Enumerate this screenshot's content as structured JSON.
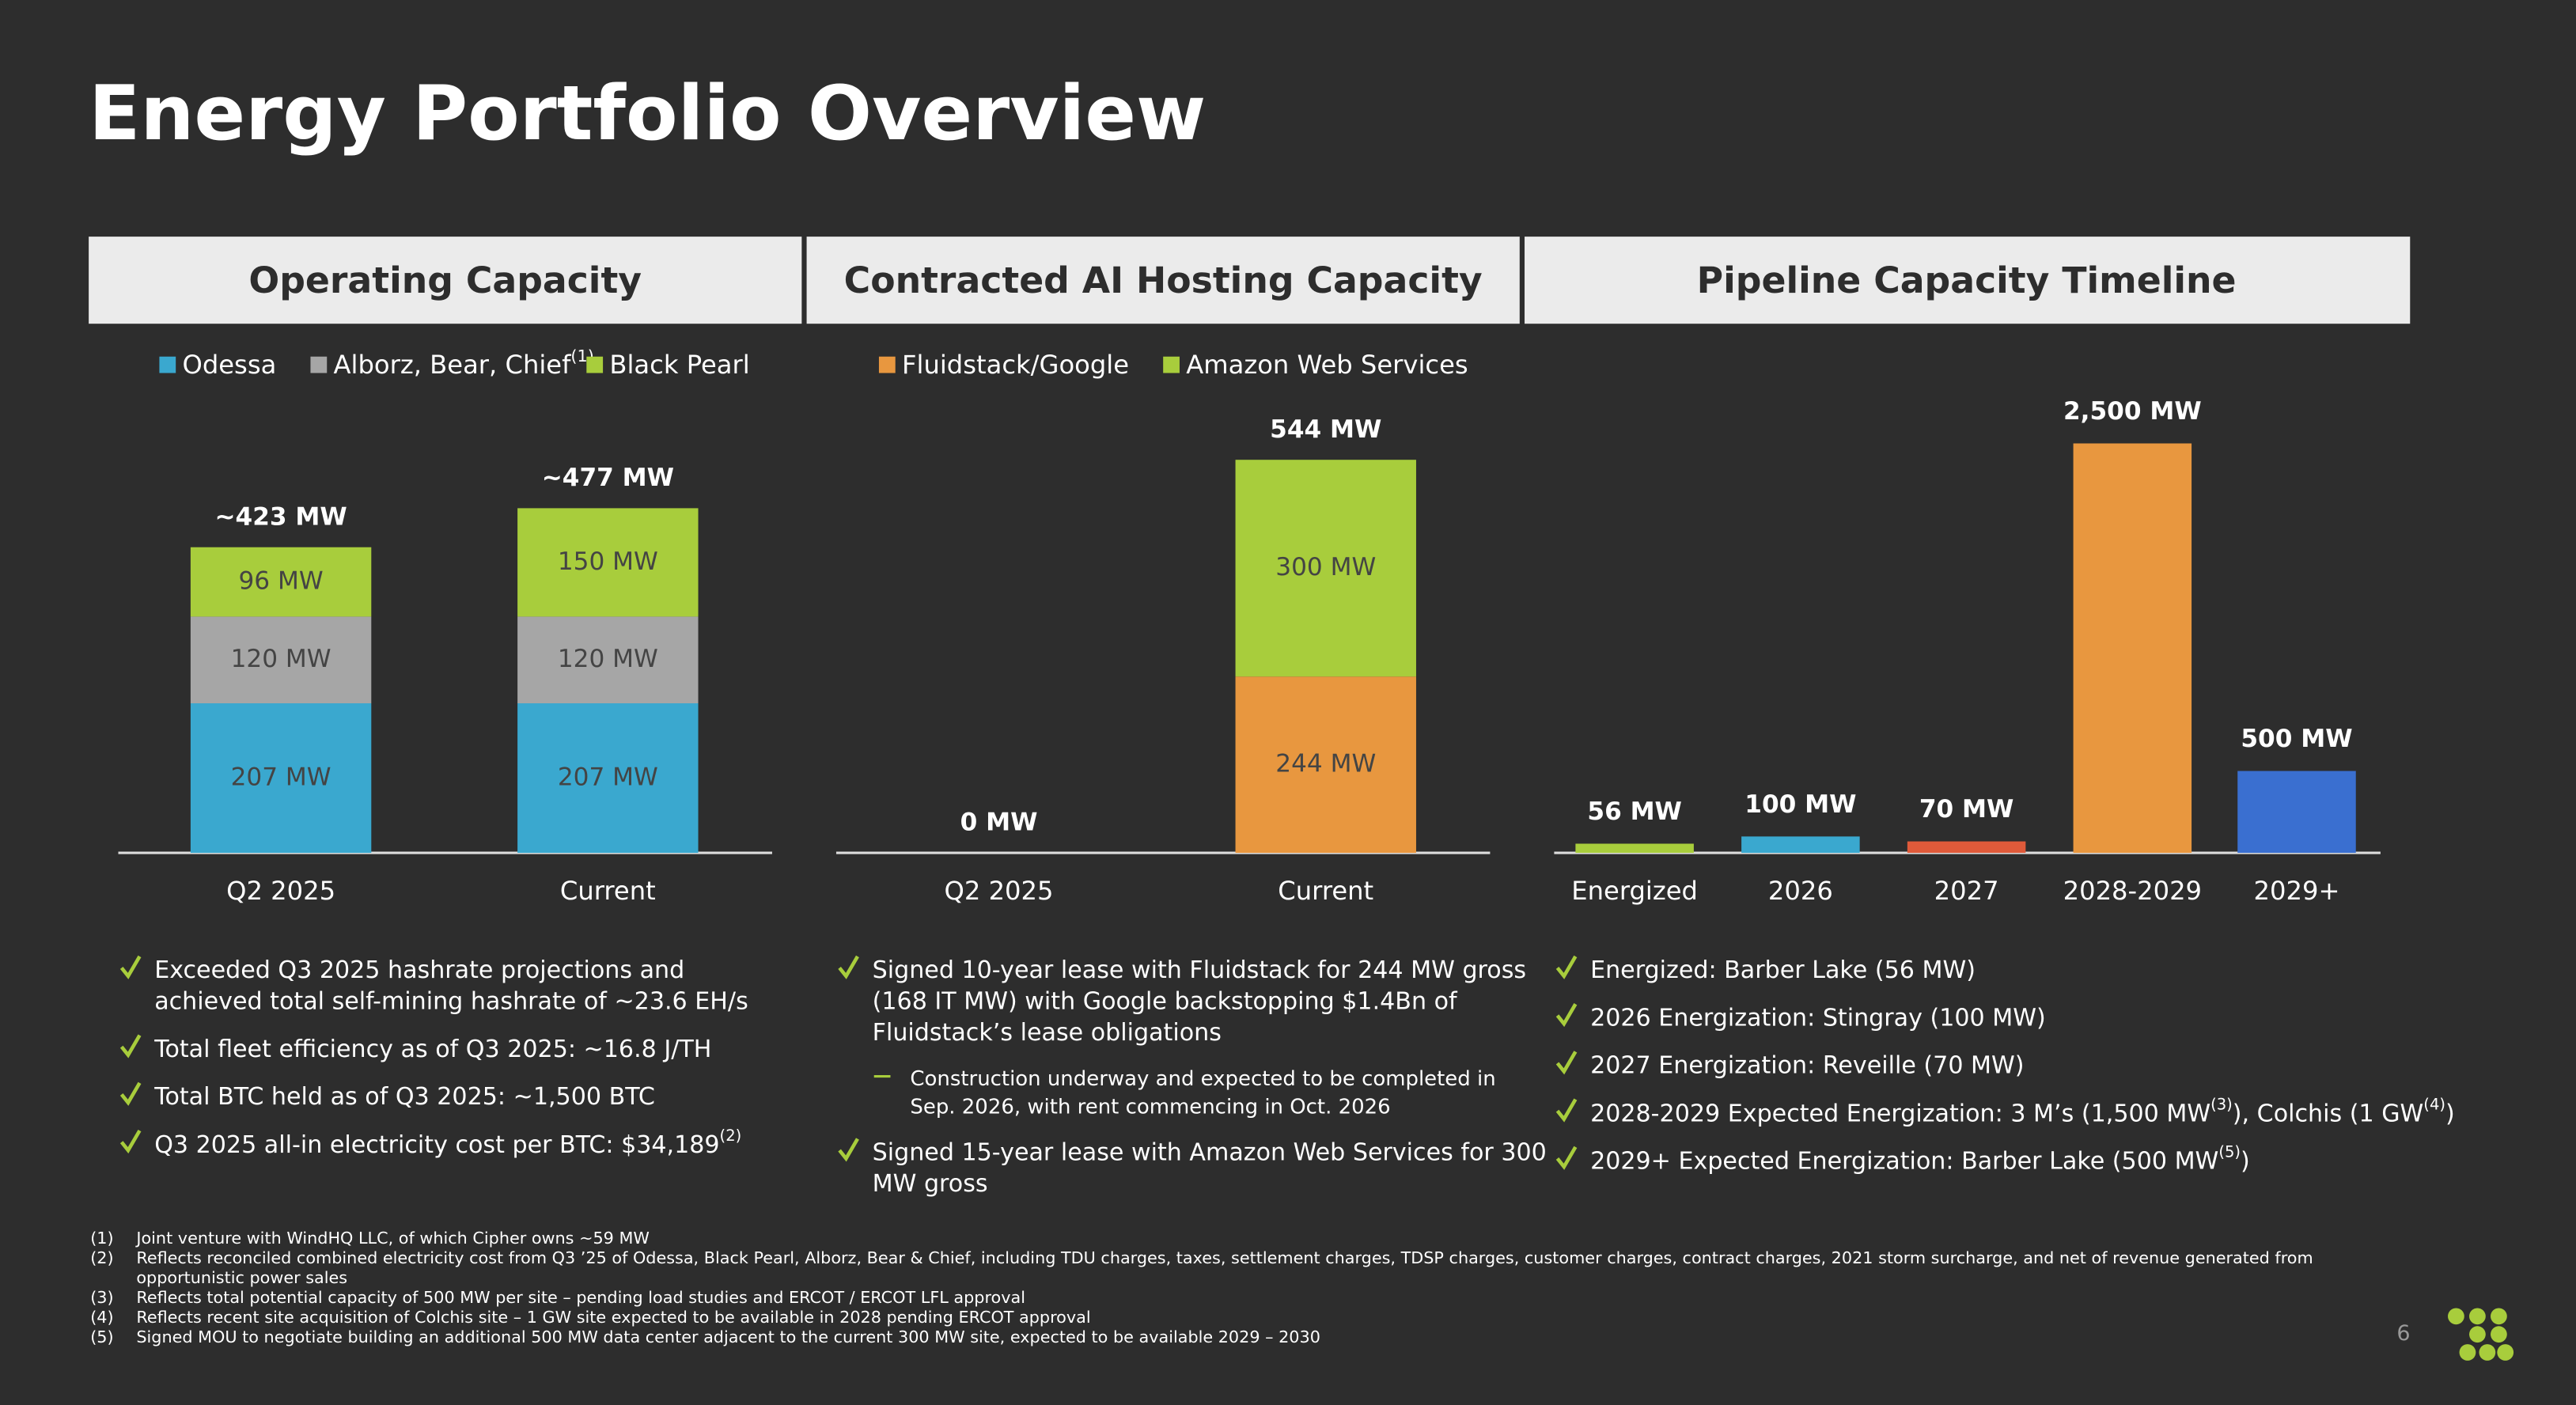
{
  "title": "Energy Portfolio Overview",
  "chart_data": [
    {
      "type": "stacked_bar",
      "title": "Operating Capacity",
      "categories": [
        "Q2 2025",
        "Current"
      ],
      "series": [
        {
          "name": "Odessa",
          "color": "#3aa8cf",
          "values": [
            207,
            207
          ],
          "value_labels": [
            "207 MW",
            "207 MW"
          ]
        },
        {
          "name": "Alborz, Bear, Chief",
          "name_sup": "(1)",
          "color": "#a6a6a6",
          "values": [
            120,
            120
          ],
          "value_labels": [
            "120 MW",
            "120 MW"
          ]
        },
        {
          "name": "Black Pearl",
          "color": "#a8cd3c",
          "values": [
            96,
            150
          ],
          "value_labels": [
            "96 MW",
            "150 MW"
          ]
        }
      ],
      "totals": [
        423,
        477
      ],
      "total_labels": [
        "~423 MW",
        "~477 MW"
      ],
      "ylim": [
        0,
        680
      ],
      "notes": [
        {
          "lines": [
            "Exceeded Q3 2025 hashrate projections and",
            "achieved total self-mining hashrate of ~23.6 EH/s"
          ]
        },
        {
          "lines": [
            "Total fleet efficiency as of Q3 2025: ~16.8 J/TH"
          ]
        },
        {
          "lines": [
            "Total BTC held as of Q3 2025: ~1,500 BTC"
          ]
        },
        {
          "lines": [
            [
              "Q3 2025 all-in electricity cost per BTC: $34,189",
              {
                "sup": "(2)"
              }
            ]
          ]
        }
      ]
    },
    {
      "type": "stacked_bar",
      "title": "Contracted AI Hosting Capacity",
      "categories": [
        "Q2 2025",
        "Current"
      ],
      "series": [
        {
          "name": "Fluidstack/Google",
          "color": "#e8973f",
          "values": [
            0,
            244
          ],
          "value_labels": [
            null,
            "244 MW"
          ]
        },
        {
          "name": "Amazon Web Services",
          "color": "#a8cd3c",
          "values": [
            0,
            300
          ],
          "value_labels": [
            null,
            "300 MW"
          ]
        }
      ],
      "totals": [
        0,
        544
      ],
      "total_labels": [
        "0 MW",
        "544 MW"
      ],
      "ylim": [
        0,
        680
      ],
      "notes": [
        {
          "lines": [
            "Signed 10-year lease with Fluidstack for 244 MW gross",
            "(168 IT MW) with Google backstopping $1.4Bn of",
            "Fluidstack’s lease obligations"
          ],
          "subitems": [
            {
              "lines": [
                "Construction underway and expected to be completed in",
                "Sep. 2026, with rent commencing in Oct. 2026"
              ]
            }
          ]
        },
        {
          "lines": [
            "Signed 15-year lease with Amazon Web Services for 300",
            "MW gross"
          ]
        }
      ]
    },
    {
      "type": "bar",
      "title": "Pipeline Capacity Timeline",
      "categories": [
        "Energized",
        "2026",
        "2027",
        "2028-2029",
        "2029+"
      ],
      "values": [
        56,
        100,
        70,
        2500,
        500
      ],
      "value_labels": [
        "56 MW",
        "100 MW",
        "70 MW",
        "2,500 MW",
        "500 MW"
      ],
      "colors": [
        "#a8cd3c",
        "#3aa8cf",
        "#e05a3a",
        "#e8973f",
        "#3a6fd0"
      ],
      "ylim": [
        0,
        3000
      ],
      "notes": [
        {
          "lines": [
            "Energized: Barber Lake (56 MW)"
          ]
        },
        {
          "lines": [
            "2026 Energization: Stingray (100 MW)"
          ]
        },
        {
          "lines": [
            "2027 Energization: Reveille (70 MW)"
          ]
        },
        {
          "lines": [
            [
              "2028-2029 Expected Energization: 3 M’s (1,500 MW",
              {
                "sup": "(3)"
              },
              "), Colchis (1 GW",
              {
                "sup": "(4)"
              },
              ")"
            ]
          ]
        },
        {
          "lines": [
            [
              "2029+ Expected Energization: Barber Lake (500 MW",
              {
                "sup": "(5)"
              },
              ")"
            ]
          ]
        }
      ]
    }
  ],
  "footnotes": [
    {
      "marker": "(1)",
      "lines": [
        "Joint venture with WindHQ LLC, of which Cipher owns ~59 MW"
      ]
    },
    {
      "marker": "(2)",
      "lines": [
        "Reflects reconciled combined electricity cost from Q3 ’25 of Odessa, Black Pearl, Alborz, Bear & Chief, including TDU charges, taxes, settlement charges, TDSP charges, customer charges, contract charges, 2021 storm surcharge, and net of revenue generated from",
        "opportunistic power sales"
      ]
    },
    {
      "marker": "(3)",
      "lines": [
        "Reflects total potential capacity of 500 MW per site – pending load studies and ERCOT / ERCOT LFL approval"
      ]
    },
    {
      "marker": "(4)",
      "lines": [
        "Reflects recent site acquisition of Colchis site – 1 GW site expected to be available in 2028 pending ERCOT approval"
      ]
    },
    {
      "marker": "(5)",
      "lines": [
        "Signed MOU to negotiate building an additional 500 MW data center adjacent to the current 300 MW site, expected to be available 2029 – 2030"
      ]
    }
  ],
  "page_number": "6"
}
